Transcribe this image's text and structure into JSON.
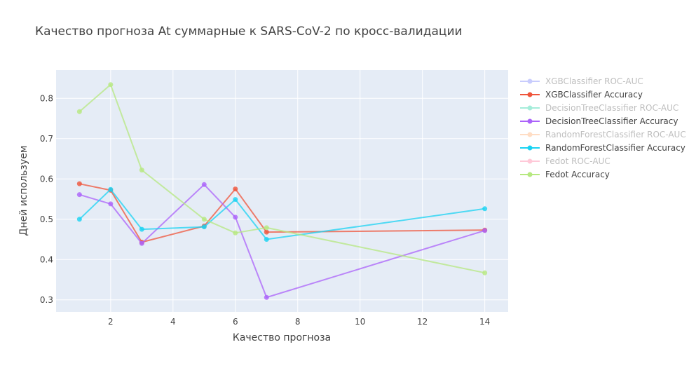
{
  "chart_data": {
    "type": "line",
    "title": "Качество прогноза At суммарные к SARS-CoV-2 по кросс-валидации",
    "xlabel": "Качество прогноза",
    "ylabel": "Дней используем",
    "xlim": [
      0.25,
      14.75
    ],
    "ylim": [
      0.27,
      0.87
    ],
    "x_ticks": [
      2,
      4,
      6,
      8,
      10,
      12,
      14
    ],
    "y_ticks": [
      0.3,
      0.4,
      0.5,
      0.6,
      0.7,
      0.8
    ],
    "grid": true,
    "legend_position": "right",
    "background": "#E5ECF6",
    "series": [
      {
        "name": "XGBClassifier ROC-AUC",
        "color": "#636EFA",
        "legend_only": true,
        "x": [],
        "y": []
      },
      {
        "name": "XGBClassifier Accuracy",
        "color": "#EF553B",
        "x": [
          1,
          2,
          3,
          5,
          6,
          7,
          14
        ],
        "y": [
          0.588,
          0.572,
          0.443,
          0.483,
          0.575,
          0.468,
          0.473
        ]
      },
      {
        "name": "DecisionTreeClassifier ROC-AUC",
        "color": "#00CC96",
        "legend_only": true,
        "x": [],
        "y": []
      },
      {
        "name": "DecisionTreeClassifier Accuracy",
        "color": "#AB63FA",
        "x": [
          1,
          2,
          3,
          5,
          6,
          7,
          14
        ],
        "y": [
          0.561,
          0.538,
          0.44,
          0.586,
          0.505,
          0.306,
          0.472
        ]
      },
      {
        "name": "RandomForestClassifier ROC-AUC",
        "color": "#FFA15A",
        "legend_only": true,
        "x": [],
        "y": []
      },
      {
        "name": "RandomForestClassifier Accuracy",
        "color": "#19D3F3",
        "x": [
          1,
          2,
          3,
          5,
          6,
          7,
          14
        ],
        "y": [
          0.5,
          0.574,
          0.475,
          0.481,
          0.549,
          0.45,
          0.526
        ]
      },
      {
        "name": "Fedot ROC-AUC",
        "color": "#FF6692",
        "legend_only": true,
        "x": [],
        "y": []
      },
      {
        "name": "Fedot Accuracy",
        "color": "#B6E880",
        "x": [
          1,
          2,
          3,
          5,
          6,
          7,
          14
        ],
        "y": [
          0.767,
          0.834,
          0.622,
          0.5,
          0.466,
          0.479,
          0.367
        ]
      }
    ]
  }
}
